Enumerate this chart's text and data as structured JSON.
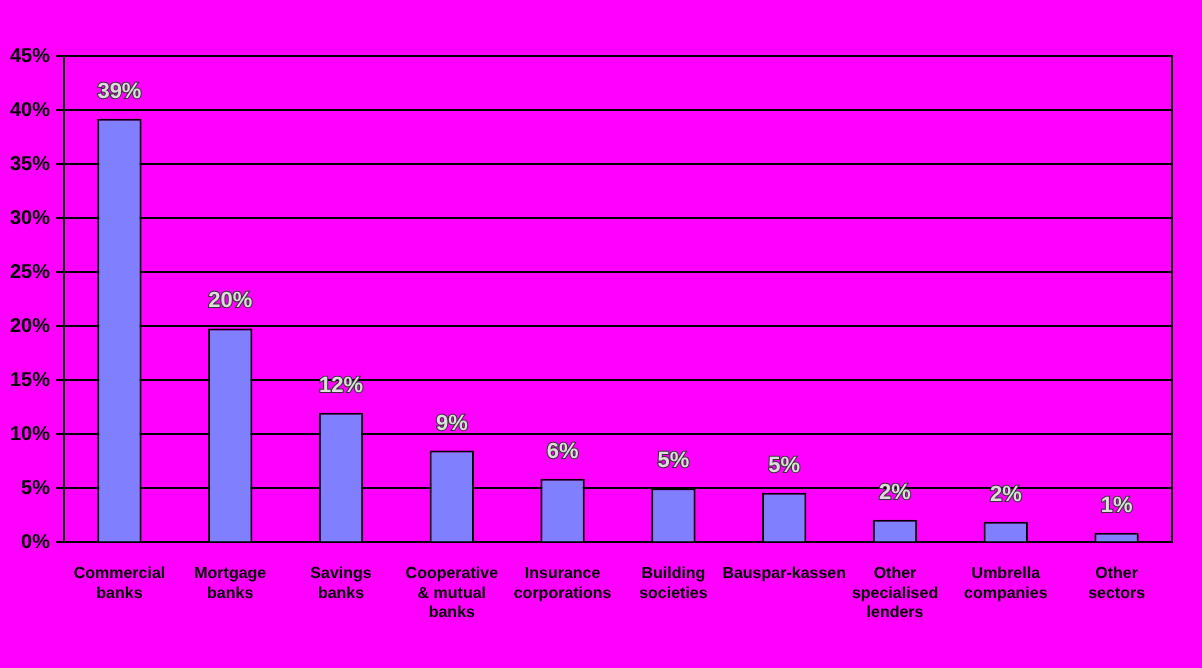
{
  "chart_data": {
    "type": "bar",
    "categories": [
      "Commercial banks",
      "Mortgage banks",
      "Savings banks",
      "Cooperative & mutual banks",
      "Insurance corporations",
      "Building societies",
      "Bauspar-kassen",
      "Other specialised lenders",
      "Umbrella companies",
      "Other sectors"
    ],
    "values": [
      39.2,
      19.8,
      12,
      8.5,
      5.9,
      5,
      4.6,
      2.1,
      1.9,
      0.9
    ],
    "value_labels": [
      "39%",
      "20%",
      "12%",
      "9%",
      "6%",
      "5%",
      "5%",
      "2%",
      "2%",
      "1%"
    ],
    "color": "#8080ff",
    "ylim": [
      0,
      45
    ],
    "yticks": [
      {
        "value": 0,
        "label": "0%"
      },
      {
        "value": 5,
        "label": "5%"
      },
      {
        "value": 10,
        "label": "10%"
      },
      {
        "value": 15,
        "label": "15%"
      },
      {
        "value": 20,
        "label": "20%"
      },
      {
        "value": 25,
        "label": "25%"
      },
      {
        "value": 30,
        "label": "30%"
      },
      {
        "value": 35,
        "label": "35%"
      },
      {
        "value": 40,
        "label": "40%"
      },
      {
        "value": 45,
        "label": "45%"
      }
    ],
    "grid": "y",
    "legend": false
  }
}
